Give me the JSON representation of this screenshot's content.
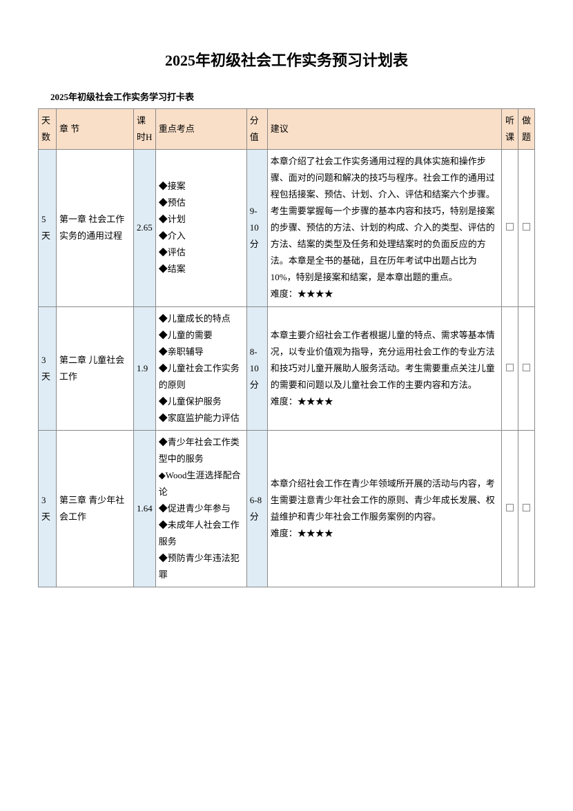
{
  "title": "2025年初级社会工作实务预习计划表",
  "subtitle": "2025年初级社会工作实务学习打卡表",
  "headers": {
    "days": "天数",
    "chapter": "章 节",
    "hours": "课时H",
    "points": "重点考点",
    "score": "分值",
    "suggest": "建议",
    "listen": "听课",
    "do": "做题"
  },
  "rows": [
    {
      "days": "5天",
      "chapter": "第一章 社会工作实务的通用过程",
      "hours": "2.65",
      "points": "◆接案\n◆预估\n◆计划\n◆介入\n◆评估\n◆结案",
      "score": "9-10分",
      "suggest": "本章介绍了社会工作实务通用过程的具体实施和操作步骤、面对的问题和解决的技巧与程序。社会工作的通用过程包括接案、预估、计划、介入、评估和结案六个步骤。考生需要掌握每一个步骤的基本内容和技巧，特别是接案的步骤、预估的方法、计划的构成、介入的类型、评估的方法、结案的类型及任务和处理结案时的负面反应的方法。本章是全书的基础，且在历年考试中出题占比为10%，特别是接案和结案，是本章出题的重点。\n难度：★★★★"
    },
    {
      "days": "3天",
      "chapter": "第二章 儿童社会工作",
      "hours": "1.9",
      "points": "◆儿童成长的特点\n◆儿童的需要\n◆亲职辅导\n◆儿童社会工作实务的原则\n◆儿童保护服务\n◆家庭监护能力评估",
      "score": "8-10分",
      "suggest": "本章主要介绍社会工作者根据儿童的特点、需求等基本情况，以专业价值观为指导，充分运用社会工作的专业方法和技巧对儿童开展助人服务活动。考生需要重点关注儿童的需要和问题以及儿童社会工作的主要内容和方法。\n难度：★★★★"
    },
    {
      "days": "3天",
      "chapter": "第三章 青少年社会工作",
      "hours": "1.64",
      "points": "◆青少年社会工作类型中的服务\n◆Wood生涯选择配合论\n◆促进青少年参与\n◆未成年人社会工作服务\n◆预防青少年违法犯罪",
      "score": "6-8分",
      "suggest": "本章介绍社会工作在青少年领域所开展的活动与内容，考生需要注意青少年社会工作的原则、青少年成长发展、权益维护和青少年社会工作服务案例的内容。\n难度：★★★★"
    }
  ]
}
